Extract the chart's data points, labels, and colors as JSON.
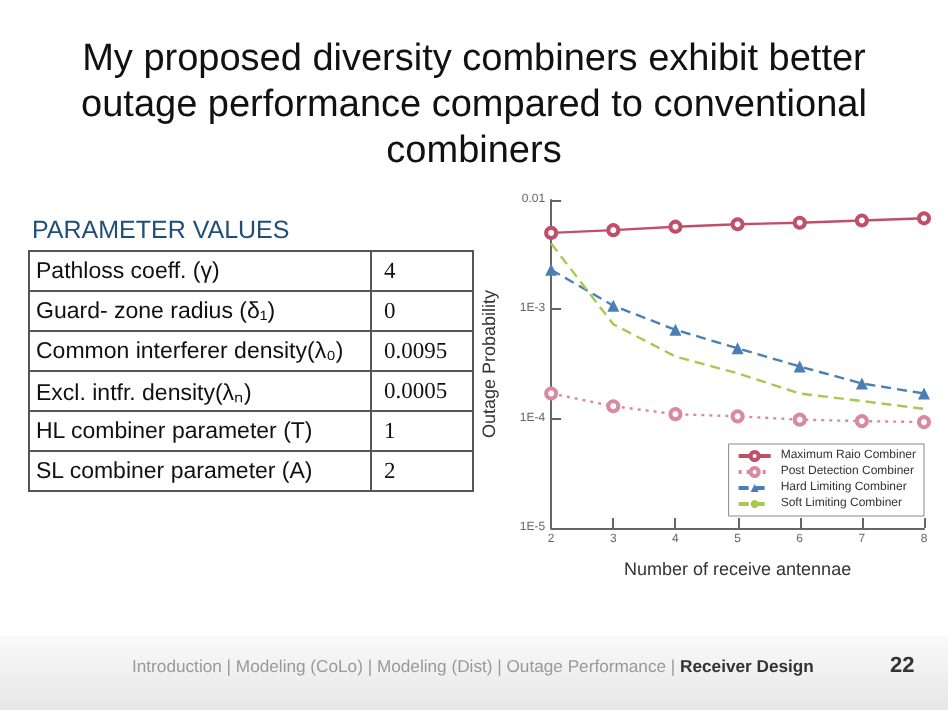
{
  "chart_data": [
    {
      "type": "other",
      "title": "My proposed diversity combiners exhibit better outage performance compared to conventional combiners",
      "subtitle": "PARAMETER VALUES",
      "categories": [
        "Pathloss coeff. (γ)",
        "Guard- zone radius (δ₁)",
        "Common interferer density(λ₀)",
        "Excl. intfr. density(λₙ)",
        "HL combiner parameter (T)",
        "SL combiner parameter (A)"
      ],
      "values": [
        4,
        0,
        0.0095,
        0.0005,
        1,
        2
      ],
      "data_labels": true,
      "annotations": [
        "Introduction | Modeling (CoLo) | Modeling (Dist) | Outage Performance |",
        "Receiver Design",
        "22"
      ]
    },
    {
      "type": "line",
      "xlabel": "Number of receive antennae",
      "ylabel": "Outage Probability",
      "log": "y",
      "x": [
        2,
        3,
        4,
        5,
        6,
        7,
        8
      ],
      "xlim": [
        2,
        8
      ],
      "xticks": [
        2,
        3,
        4,
        5,
        6,
        7,
        8
      ],
      "ylim": [
        1e-05,
        0.01
      ],
      "yticks": [
        {
          "value": 1e-05,
          "label": "1E-5"
        },
        {
          "value": 0.0001,
          "label": "1E-4"
        },
        {
          "value": 0.001,
          "label": "1E-3"
        },
        0.01
      ],
      "legend": "bottom right",
      "grid": false,
      "series": [
        {
          "name": "Maximum Raio Combiner",
          "color": "#c0506a",
          "marker": "circle",
          "line_style": "solid",
          "values": [
            0.005,
            0.0053,
            0.0057,
            0.006,
            0.0062,
            0.0065,
            0.0068
          ]
        },
        {
          "name": "Post Detection Combiner",
          "color": "#d88aa0",
          "marker": "circle",
          "line_style": "dotted",
          "values": [
            0.00017,
            0.00013,
            0.00011,
            0.000105,
            9.8e-05,
            9.5e-05,
            9.3e-05
          ]
        },
        {
          "name": "Hard Limiting Combiner",
          "color": "#4a7fb5",
          "marker": "triangle",
          "line_style": "dashed",
          "values": [
            0.0023,
            0.00108,
            0.00065,
            0.00044,
            0.0003,
            0.00021,
            0.00017
          ]
        },
        {
          "name": "Soft Limiting Combiner",
          "color": "#a8c850",
          "marker": "none",
          "line_style": "dashed",
          "values": [
            0.004,
            0.00073,
            0.00037,
            0.00026,
            0.00017,
            0.000145,
            0.000123
          ]
        }
      ]
    }
  ]
}
